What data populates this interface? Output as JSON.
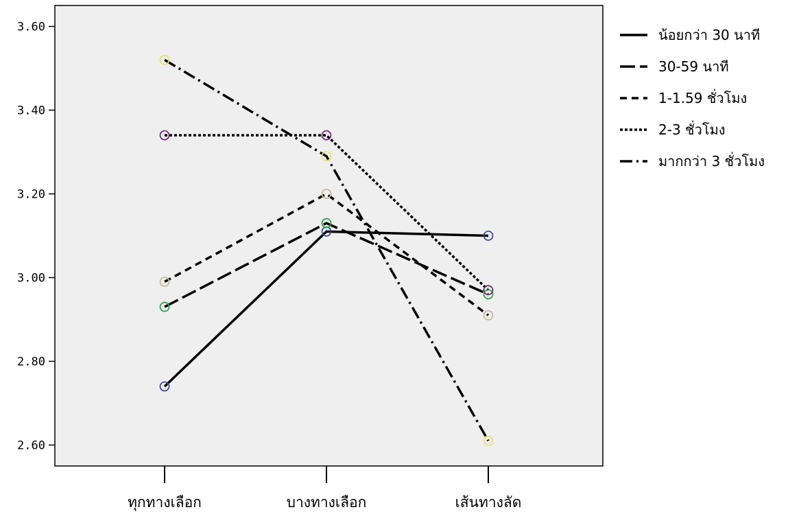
{
  "chart_data": {
    "type": "line",
    "title": "",
    "xlabel": "",
    "ylabel": "",
    "categories": [
      "ทุกทางเลือก",
      "บางทางเลือก",
      "เส้นทางลัด"
    ],
    "ylim": [
      2.55,
      3.65
    ],
    "yticks": [
      2.6,
      2.8,
      3.0,
      3.2,
      3.4,
      3.6
    ],
    "ytick_labels": [
      "2.60",
      "2.80",
      "3.00",
      "3.20",
      "3.40",
      "3.60"
    ],
    "plot_background": "#efefef",
    "grid": false,
    "legend_position": "right",
    "series": [
      {
        "name": "น้อยกว่า 30 นาที",
        "values": [
          2.74,
          3.11,
          3.1
        ],
        "dash": "solid",
        "marker_color": "#3b4fa0"
      },
      {
        "name": "30-59 นาที",
        "values": [
          2.93,
          3.13,
          2.96
        ],
        "dash": "longdash",
        "marker_color": "#2aa84a"
      },
      {
        "name": "1-1.59 ชั่วโมง",
        "values": [
          2.99,
          3.2,
          2.91
        ],
        "dash": "dash",
        "marker_color": "#c8b99a"
      },
      {
        "name": "2-3 ชั่วโมง",
        "values": [
          3.34,
          3.34,
          2.97
        ],
        "dash": "dot",
        "marker_color": "#7a2a7a"
      },
      {
        "name": "มากกว่า 3 ชั่วโมง",
        "values": [
          3.52,
          3.29,
          2.61
        ],
        "dash": "dashdot",
        "marker_color": "#e8e070"
      }
    ]
  }
}
